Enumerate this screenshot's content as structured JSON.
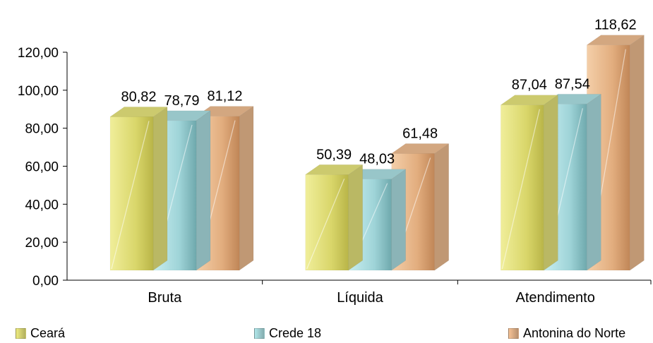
{
  "chart_data": {
    "type": "bar",
    "categories": [
      "Bruta",
      "Líquida",
      "Atendimento"
    ],
    "series": [
      {
        "name": "Ceará",
        "values": [
          80.82,
          50.39,
          87.04
        ],
        "value_labels": [
          "80,82",
          "50,39",
          "87,04"
        ],
        "color": "#e3e07a"
      },
      {
        "name": "Crede 18",
        "values": [
          78.79,
          48.03,
          87.54
        ],
        "value_labels": [
          "78,79",
          "48,03",
          "87,54"
        ],
        "color": "#a9dcdf"
      },
      {
        "name": "Antonina do Norte",
        "values": [
          81.12,
          61.48,
          118.62
        ],
        "value_labels": [
          "81,12",
          "61,48",
          "118,62"
        ],
        "color": "#eab98e"
      }
    ],
    "ylim": [
      0,
      120
    ],
    "yticks": [
      0,
      20,
      40,
      60,
      80,
      100,
      120
    ],
    "ytick_labels": [
      "0,00",
      "20,00",
      "40,00",
      "60,00",
      "80,00",
      "100,00",
      "120,00"
    ],
    "style": "3d-columns",
    "grid": false,
    "legend_position": "bottom"
  }
}
